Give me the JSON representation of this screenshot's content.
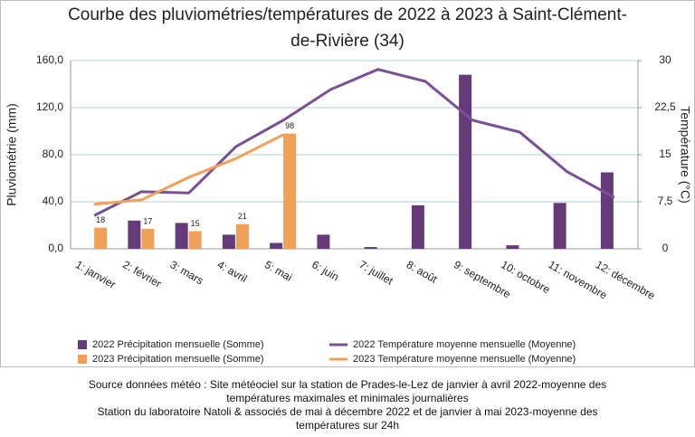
{
  "chart_data": {
    "type": "combo",
    "title": "Courbe des pluviométries/températures de 2022 à 2023 à Saint-Clément-de-Rivière (34)",
    "y_label": "Pluviométrie (mm)",
    "y2_label": "Température (°C)",
    "categories": [
      "1: janvier",
      "2: février",
      "3: mars",
      "4: avril",
      "5: mai",
      "6: juin",
      "7: juillet",
      "8: août",
      "9: septembre",
      "10: octobre",
      "11: novembre",
      "12: décembre"
    ],
    "series": [
      {
        "name": "2022 Précipitation mensuelle (Somme)",
        "type": "bar",
        "color": "#653a78",
        "data_labels": false,
        "values": [
          null,
          24,
          22,
          12,
          5,
          12,
          1.5,
          37,
          148,
          3,
          39,
          65
        ]
      },
      {
        "name": "2023 Précipitation mensuelle (Somme)",
        "type": "bar",
        "color": "#f0a057",
        "data_labels": true,
        "values": [
          18,
          17,
          15,
          21,
          98,
          null,
          null,
          null,
          null,
          null,
          null,
          null
        ]
      },
      {
        "name": "2022 Température moyenne mensuelle (Moyenne)",
        "type": "line",
        "axis": "y2",
        "color": "#7a4f96",
        "values": [
          5.3,
          9.1,
          8.9,
          16.3,
          20.5,
          25.4,
          28.6,
          26.7,
          20.5,
          18.6,
          12.3,
          8.2
        ]
      },
      {
        "name": "2023 Température moyenne mensuelle (Moyenne)",
        "type": "line",
        "axis": "y2",
        "color": "#f0a057",
        "values": [
          7.1,
          7.8,
          11.4,
          14.4,
          18.2,
          null,
          null,
          null,
          null,
          null,
          null,
          null
        ]
      }
    ],
    "ylim": [
      0,
      160
    ],
    "yticks": [
      {
        "value": 0,
        "label": "0,0"
      },
      {
        "value": 40,
        "label": "40,0"
      },
      {
        "value": 80,
        "label": "80,0"
      },
      {
        "value": 120,
        "label": "120,0"
      },
      {
        "value": 160,
        "label": "160,0"
      }
    ],
    "y2lim": [
      0,
      30
    ],
    "y2ticks": [
      0,
      {
        "value": 7.5,
        "label": "7,5"
      },
      15,
      {
        "value": 22.5,
        "label": "22,5"
      },
      30
    ],
    "grid": true,
    "note": [
      "Source données météo : Site météociel sur la station de Prades-le-Lez de janvier à avril 2022-moyenne des",
      "températures maximales et minimales journalières",
      "Station du laboratoire Natoli & associés  de mai à décembre 2022 et de janvier à mai 2023-moyenne des",
      "températures sur 24h"
    ]
  }
}
